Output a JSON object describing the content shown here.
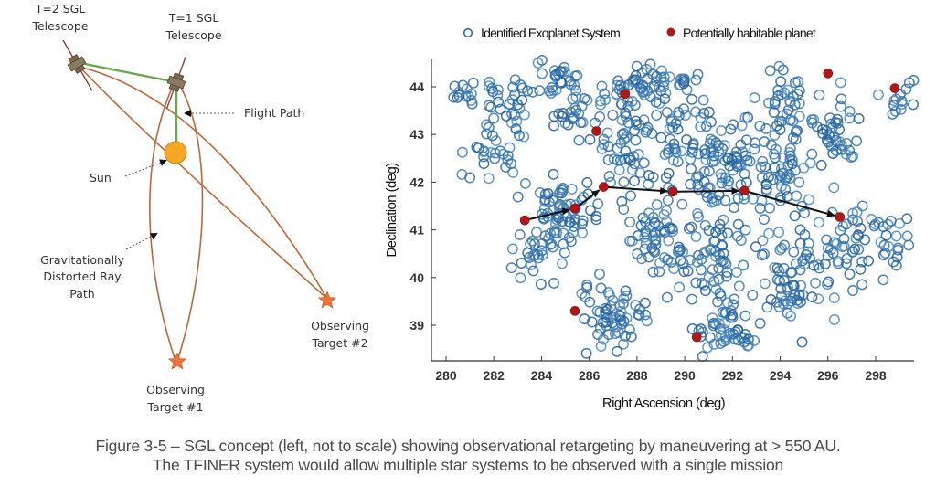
{
  "diagram": {
    "labels": {
      "t2_line1": "T=2 SGL",
      "t2_line2": "Telescope",
      "t1_line1": "T=1 SGL",
      "t1_line2": "Telescope",
      "flight_path": "Flight Path",
      "sun": "Sun",
      "ray_line1": "Gravitationally",
      "ray_line2": "Distorted Ray",
      "ray_line3": "Path",
      "target1_line1": "Observing",
      "target1_line2": "Target #1",
      "target2_line1": "Observing",
      "target2_line2": "Target #2"
    },
    "colors": {
      "ray": "#b8683a",
      "flight_path": "#6aa84f",
      "sun": "#f5a623",
      "star": "#e8743b",
      "telescope": "#7a6a50"
    }
  },
  "chart_data": {
    "type": "scatter",
    "title": "",
    "xlabel": "Right Ascension (deg)",
    "ylabel": "Declination (deg)",
    "xlim": [
      279.4,
      299.8
    ],
    "ylim": [
      38.3,
      44.6
    ],
    "x_ticks": [
      280,
      282,
      284,
      286,
      288,
      290,
      292,
      294,
      296,
      298
    ],
    "y_ticks": [
      39,
      40,
      41,
      42,
      43,
      44
    ],
    "grid": false,
    "legend": {
      "placement": "top",
      "entries": [
        {
          "label": "Identified Exoplanet System",
          "marker": "open-circle",
          "color": "#2a6aa8"
        },
        {
          "label": "Potentially habitable planet",
          "marker": "filled-circle",
          "color": "#b01818"
        }
      ]
    },
    "series": [
      {
        "name": "Identified Exoplanet System",
        "generated": true,
        "approx_count": 900,
        "note": "dense field of open circles; approximate cluster centers below",
        "clusters": [
          {
            "x": 281.0,
            "y": 43.9,
            "spread_x": 0.7,
            "spread_y": 0.3,
            "n": 15
          },
          {
            "x": 282.5,
            "y": 43.6,
            "spread_x": 0.8,
            "spread_y": 0.7,
            "n": 30
          },
          {
            "x": 281.8,
            "y": 42.6,
            "spread_x": 0.8,
            "spread_y": 0.5,
            "n": 25
          },
          {
            "x": 284.5,
            "y": 44.2,
            "spread_x": 0.9,
            "spread_y": 0.3,
            "n": 25
          },
          {
            "x": 285.3,
            "y": 43.6,
            "spread_x": 0.8,
            "spread_y": 0.5,
            "n": 25
          },
          {
            "x": 284.8,
            "y": 41.4,
            "spread_x": 1.3,
            "spread_y": 0.6,
            "n": 70
          },
          {
            "x": 283.8,
            "y": 40.4,
            "spread_x": 0.8,
            "spread_y": 0.4,
            "n": 25
          },
          {
            "x": 287.2,
            "y": 42.8,
            "spread_x": 1.0,
            "spread_y": 0.9,
            "n": 60
          },
          {
            "x": 288.5,
            "y": 44.1,
            "spread_x": 1.6,
            "spread_y": 0.4,
            "n": 50
          },
          {
            "x": 289.8,
            "y": 43.2,
            "spread_x": 1.2,
            "spread_y": 0.7,
            "n": 50
          },
          {
            "x": 288.9,
            "y": 41.0,
            "spread_x": 1.0,
            "spread_y": 0.9,
            "n": 60
          },
          {
            "x": 287.0,
            "y": 39.2,
            "spread_x": 1.3,
            "spread_y": 0.6,
            "n": 60
          },
          {
            "x": 291.5,
            "y": 42.2,
            "spread_x": 1.4,
            "spread_y": 0.8,
            "n": 80
          },
          {
            "x": 291.0,
            "y": 40.4,
            "spread_x": 1.2,
            "spread_y": 0.8,
            "n": 60
          },
          {
            "x": 291.7,
            "y": 38.9,
            "spread_x": 1.1,
            "spread_y": 0.5,
            "n": 50
          },
          {
            "x": 294.2,
            "y": 43.6,
            "spread_x": 1.0,
            "spread_y": 0.7,
            "n": 45
          },
          {
            "x": 294.0,
            "y": 42.3,
            "spread_x": 1.0,
            "spread_y": 0.8,
            "n": 50
          },
          {
            "x": 294.5,
            "y": 40.0,
            "spread_x": 1.2,
            "spread_y": 1.0,
            "n": 70
          },
          {
            "x": 296.3,
            "y": 43.0,
            "spread_x": 0.8,
            "spread_y": 0.8,
            "n": 40
          },
          {
            "x": 297.0,
            "y": 40.8,
            "spread_x": 1.0,
            "spread_y": 0.8,
            "n": 45
          },
          {
            "x": 298.9,
            "y": 43.9,
            "spread_x": 0.6,
            "spread_y": 0.4,
            "n": 15
          },
          {
            "x": 298.8,
            "y": 40.9,
            "spread_x": 0.6,
            "spread_y": 0.6,
            "n": 20
          }
        ]
      },
      {
        "name": "Potentially habitable planet",
        "points": [
          {
            "x": 283.3,
            "y": 41.2
          },
          {
            "x": 285.4,
            "y": 41.45
          },
          {
            "x": 286.6,
            "y": 41.9
          },
          {
            "x": 289.5,
            "y": 41.8
          },
          {
            "x": 292.5,
            "y": 41.82
          },
          {
            "x": 296.5,
            "y": 41.27
          },
          {
            "x": 286.3,
            "y": 43.07
          },
          {
            "x": 287.5,
            "y": 43.85
          },
          {
            "x": 296.0,
            "y": 44.28
          },
          {
            "x": 298.8,
            "y": 43.97
          },
          {
            "x": 285.4,
            "y": 39.3
          },
          {
            "x": 290.5,
            "y": 38.75
          }
        ]
      }
    ],
    "annotations": {
      "retargeting_path": {
        "type": "arrow-chain",
        "points": [
          {
            "x": 283.3,
            "y": 41.2
          },
          {
            "x": 285.4,
            "y": 41.45
          },
          {
            "x": 286.6,
            "y": 41.9
          },
          {
            "x": 289.5,
            "y": 41.8
          },
          {
            "x": 292.5,
            "y": 41.82
          },
          {
            "x": 296.5,
            "y": 41.27
          }
        ]
      }
    }
  },
  "caption": {
    "line1": "Figure 3-5 – SGL concept (left, not to scale) showing observational retargeting by maneuvering at > 550 AU.",
    "line2": "The TFINER system would allow multiple star systems to be observed with a single mission"
  }
}
